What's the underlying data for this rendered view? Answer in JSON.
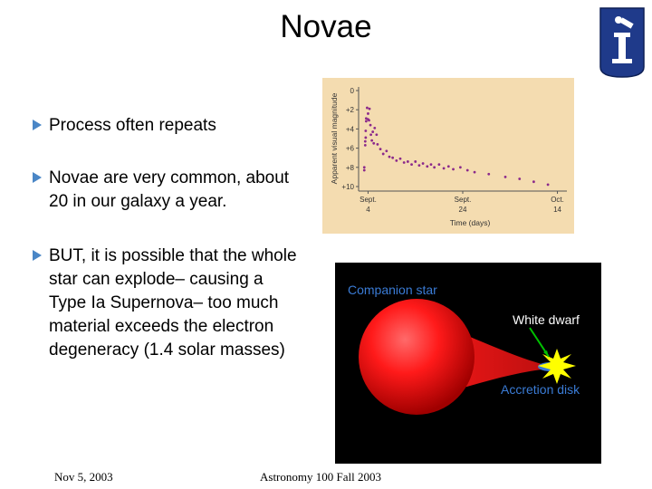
{
  "slide": {
    "title": "Novae",
    "bullets": [
      {
        "text": "Process often repeats"
      },
      {
        "text": "Novae are very common, about 20 in our galaxy a year."
      },
      {
        "text": "BUT, it is possible that the whole star can explode– causing a Type Ia Supernova– too much material exceeds the electron degeneracy (1.4 solar masses)"
      }
    ],
    "footer": {
      "date": "Nov 5, 2003",
      "course": "Astronomy 100 Fall 2003"
    }
  },
  "light_curve": {
    "ylabel": "Apparent visual magnitude",
    "xlabel": "Time (days)",
    "yticks": [
      "0",
      "+2",
      "+4",
      "+6",
      "+8",
      "+10"
    ],
    "xticks": [
      {
        "month": "Sept.",
        "day": "4"
      },
      {
        "month": "Sept.",
        "day": "24"
      },
      {
        "month": "Oct.",
        "day": "14"
      }
    ],
    "colors": {
      "background": "#f4dcb0",
      "points": "#8b2a8b"
    }
  },
  "chart_data": {
    "type": "scatter",
    "xlabel": "Time (days)",
    "ylabel": "Apparent visual magnitude",
    "ylim": [
      0,
      10
    ],
    "y_inverted": true,
    "xlim": [
      -2,
      42
    ],
    "x_tick_values": [
      0,
      20,
      40
    ],
    "x_tick_labels": [
      "Sept. 4",
      "Sept. 24",
      "Oct. 14"
    ],
    "y_tick_labels": [
      "0",
      "+2",
      "+4",
      "+6",
      "+8",
      "+10"
    ],
    "points": [
      {
        "x": -0.8,
        "y": 8.3
      },
      {
        "x": -0.8,
        "y": 8.0
      },
      {
        "x": -0.6,
        "y": 5.7
      },
      {
        "x": -0.6,
        "y": 5.3
      },
      {
        "x": -0.5,
        "y": 4.9
      },
      {
        "x": -0.5,
        "y": 4.2
      },
      {
        "x": -0.4,
        "y": 3.2
      },
      {
        "x": -0.4,
        "y": 2.9
      },
      {
        "x": -0.2,
        "y": 1.8
      },
      {
        "x": 0.0,
        "y": 2.4
      },
      {
        "x": 0.0,
        "y": 3.0
      },
      {
        "x": 0.2,
        "y": 3.1
      },
      {
        "x": 0.3,
        "y": 1.9
      },
      {
        "x": 0.5,
        "y": 3.6
      },
      {
        "x": 0.6,
        "y": 4.6
      },
      {
        "x": 0.8,
        "y": 5.2
      },
      {
        "x": 1.0,
        "y": 4.3
      },
      {
        "x": 1.2,
        "y": 5.5
      },
      {
        "x": 1.4,
        "y": 3.9
      },
      {
        "x": 1.8,
        "y": 4.6
      },
      {
        "x": 2.0,
        "y": 5.6
      },
      {
        "x": 2.6,
        "y": 6.1
      },
      {
        "x": 3.2,
        "y": 6.6
      },
      {
        "x": 3.9,
        "y": 6.3
      },
      {
        "x": 4.5,
        "y": 6.9
      },
      {
        "x": 5.2,
        "y": 7.0
      },
      {
        "x": 6.0,
        "y": 7.3
      },
      {
        "x": 6.8,
        "y": 7.1
      },
      {
        "x": 7.6,
        "y": 7.5
      },
      {
        "x": 8.4,
        "y": 7.4
      },
      {
        "x": 9.2,
        "y": 7.7
      },
      {
        "x": 10.0,
        "y": 7.4
      },
      {
        "x": 10.8,
        "y": 7.8
      },
      {
        "x": 11.6,
        "y": 7.6
      },
      {
        "x": 12.5,
        "y": 7.9
      },
      {
        "x": 13.3,
        "y": 7.7
      },
      {
        "x": 14.0,
        "y": 8.0
      },
      {
        "x": 15.0,
        "y": 7.7
      },
      {
        "x": 16.0,
        "y": 8.1
      },
      {
        "x": 17.0,
        "y": 7.9
      },
      {
        "x": 18.0,
        "y": 8.2
      },
      {
        "x": 19.5,
        "y": 8.0
      },
      {
        "x": 21.0,
        "y": 8.3
      },
      {
        "x": 22.5,
        "y": 8.5
      },
      {
        "x": 25.5,
        "y": 8.7
      },
      {
        "x": 29.0,
        "y": 9.0
      },
      {
        "x": 32.0,
        "y": 9.2
      },
      {
        "x": 35.0,
        "y": 9.5
      },
      {
        "x": 38.0,
        "y": 9.8
      }
    ]
  },
  "diagram": {
    "labels": {
      "companion": "Companion star",
      "white_dwarf": "White dwarf",
      "accretion": "Accretion disk"
    },
    "colors": {
      "background": "#000000",
      "companion_label": "#3a7bd5",
      "white_dwarf_label": "#ffffff",
      "accretion_label": "#3a7bd5",
      "star": "#ff1a1a",
      "dwarf": "#ffff00",
      "arrow": "#00c000"
    }
  },
  "logo": {
    "colors": {
      "primary": "#1f3a8a",
      "accent": "#ffffff"
    }
  }
}
